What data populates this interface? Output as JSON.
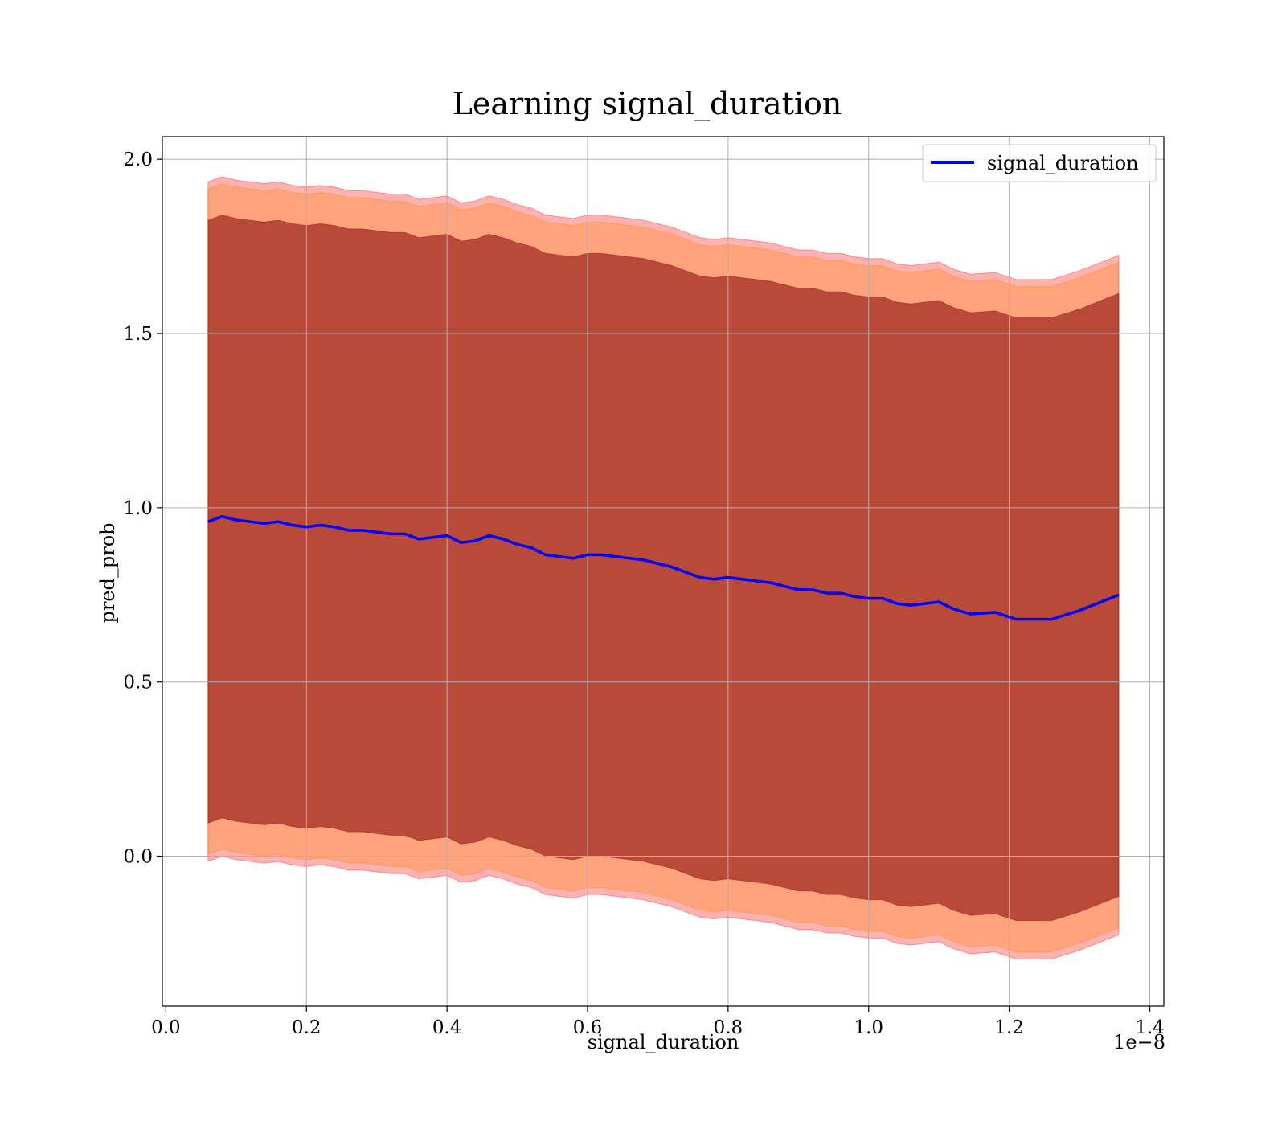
{
  "chart_data": {
    "type": "line",
    "title": "Learning signal_duration",
    "xlabel": "signal_duration",
    "ylabel": "pred_prob",
    "x_offset_label": "1e−8",
    "xlim": [
      -0.005,
      1.42
    ],
    "ylim": [
      -0.43,
      2.065
    ],
    "x_ticks": [
      0.0,
      0.2,
      0.4,
      0.6,
      0.8,
      1.0,
      1.2,
      1.4
    ],
    "x_tick_labels": [
      "0.0",
      "0.2",
      "0.4",
      "0.6",
      "0.8",
      "1.0",
      "1.2",
      "1.4"
    ],
    "y_ticks": [
      0.0,
      0.5,
      1.0,
      1.5,
      2.0
    ],
    "y_tick_labels": [
      "0.0",
      "0.5",
      "1.0",
      "1.5",
      "2.0"
    ],
    "grid": true,
    "legend_position": "top-right",
    "colors": {
      "line": "#0000ff",
      "band_inner": "#800000",
      "band_middle": "#ff8000",
      "band_outer": "#ff0000"
    },
    "series": [
      {
        "name": "signal_duration",
        "x": [
          0.06,
          0.08,
          0.1,
          0.12,
          0.14,
          0.16,
          0.18,
          0.2,
          0.22,
          0.24,
          0.26,
          0.28,
          0.3,
          0.32,
          0.34,
          0.36,
          0.38,
          0.4,
          0.42,
          0.44,
          0.46,
          0.48,
          0.5,
          0.52,
          0.54,
          0.56,
          0.58,
          0.6,
          0.62,
          0.64,
          0.66,
          0.68,
          0.7,
          0.72,
          0.74,
          0.76,
          0.78,
          0.8,
          0.82,
          0.84,
          0.86,
          0.88,
          0.9,
          0.92,
          0.94,
          0.96,
          0.98,
          1.0,
          1.02,
          1.04,
          1.06,
          1.08,
          1.1,
          1.12,
          1.145,
          1.18,
          1.21,
          1.26,
          1.3,
          1.356
        ],
        "y": [
          0.96,
          0.975,
          0.965,
          0.96,
          0.955,
          0.96,
          0.95,
          0.945,
          0.95,
          0.945,
          0.935,
          0.935,
          0.93,
          0.925,
          0.925,
          0.91,
          0.915,
          0.92,
          0.9,
          0.905,
          0.92,
          0.91,
          0.895,
          0.885,
          0.865,
          0.86,
          0.855,
          0.865,
          0.865,
          0.86,
          0.855,
          0.85,
          0.84,
          0.83,
          0.815,
          0.8,
          0.795,
          0.8,
          0.795,
          0.79,
          0.785,
          0.775,
          0.765,
          0.765,
          0.755,
          0.755,
          0.745,
          0.74,
          0.74,
          0.725,
          0.72,
          0.725,
          0.73,
          0.71,
          0.695,
          0.7,
          0.68,
          0.68,
          0.705,
          0.75
        ],
        "band_inner_halfwidth": [
          0.865,
          0.865,
          0.865,
          0.865,
          0.865,
          0.865,
          0.865,
          0.865,
          0.865,
          0.865,
          0.865,
          0.865,
          0.865,
          0.865,
          0.865,
          0.865,
          0.865,
          0.865,
          0.865,
          0.865,
          0.865,
          0.865,
          0.865,
          0.865,
          0.865,
          0.865,
          0.865,
          0.865,
          0.865,
          0.865,
          0.865,
          0.865,
          0.865,
          0.865,
          0.865,
          0.865,
          0.865,
          0.865,
          0.865,
          0.865,
          0.865,
          0.865,
          0.865,
          0.865,
          0.865,
          0.865,
          0.865,
          0.865,
          0.865,
          0.865,
          0.865,
          0.865,
          0.865,
          0.865,
          0.865,
          0.865,
          0.865,
          0.865,
          0.865,
          0.865
        ],
        "band_middle_halfwidth": [
          0.955,
          0.955,
          0.955,
          0.955,
          0.955,
          0.955,
          0.955,
          0.955,
          0.955,
          0.955,
          0.955,
          0.955,
          0.955,
          0.955,
          0.955,
          0.955,
          0.955,
          0.955,
          0.955,
          0.955,
          0.955,
          0.955,
          0.955,
          0.955,
          0.955,
          0.955,
          0.955,
          0.955,
          0.955,
          0.955,
          0.955,
          0.955,
          0.955,
          0.955,
          0.955,
          0.955,
          0.955,
          0.955,
          0.955,
          0.955,
          0.955,
          0.955,
          0.955,
          0.955,
          0.955,
          0.955,
          0.955,
          0.955,
          0.955,
          0.955,
          0.955,
          0.955,
          0.955,
          0.955,
          0.955,
          0.955,
          0.955,
          0.955,
          0.955,
          0.955
        ],
        "band_outer_halfwidth": [
          0.975,
          0.975,
          0.975,
          0.975,
          0.975,
          0.975,
          0.975,
          0.975,
          0.975,
          0.975,
          0.975,
          0.975,
          0.975,
          0.975,
          0.975,
          0.975,
          0.975,
          0.975,
          0.975,
          0.975,
          0.975,
          0.975,
          0.975,
          0.975,
          0.975,
          0.975,
          0.975,
          0.975,
          0.975,
          0.975,
          0.975,
          0.975,
          0.975,
          0.975,
          0.975,
          0.975,
          0.975,
          0.975,
          0.975,
          0.975,
          0.975,
          0.975,
          0.975,
          0.975,
          0.975,
          0.975,
          0.975,
          0.975,
          0.975,
          0.975,
          0.975,
          0.975,
          0.975,
          0.975,
          0.975,
          0.975,
          0.975,
          0.975,
          0.975,
          0.975
        ]
      }
    ]
  }
}
